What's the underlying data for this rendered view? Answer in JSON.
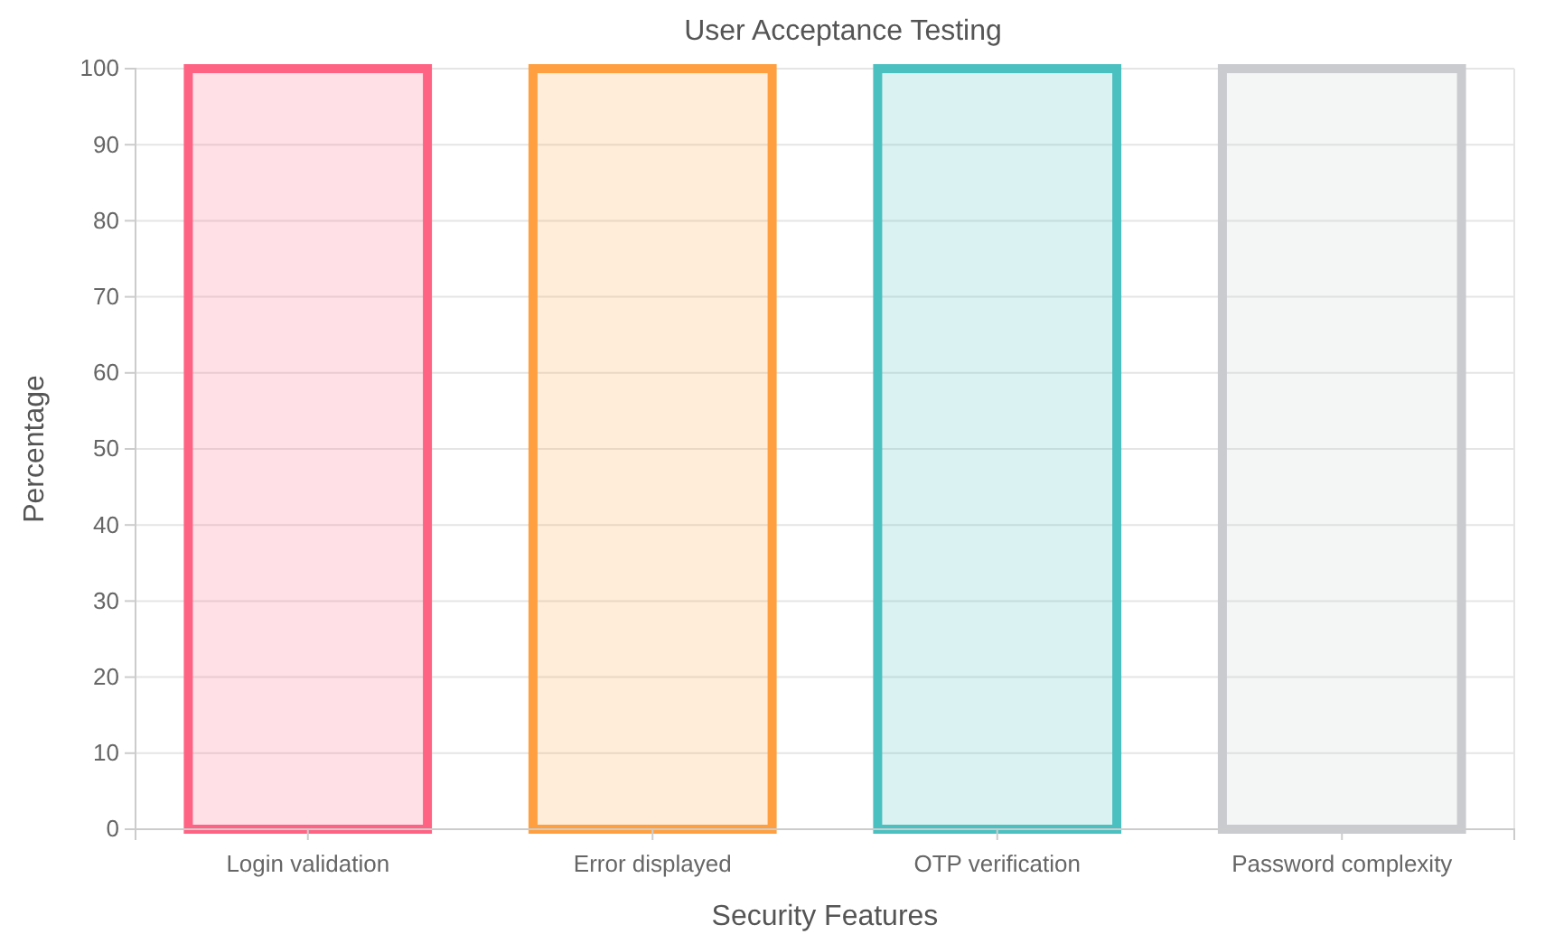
{
  "chart_data": {
    "type": "bar",
    "title": "User Acceptance Testing",
    "xlabel": "Security Features",
    "ylabel": "Percentage",
    "categories": [
      "Login validation",
      "Error displayed",
      "OTP verification",
      "Password complexity"
    ],
    "values": [
      100,
      100,
      100,
      100
    ],
    "colors": [
      "#ff6384",
      "#ff9f40",
      "#4bc0c0",
      "#c9cbcf"
    ],
    "ylim": [
      0,
      100
    ],
    "yticks": [
      0,
      10,
      20,
      30,
      40,
      50,
      60,
      70,
      80,
      90,
      100
    ],
    "grid": "y"
  }
}
